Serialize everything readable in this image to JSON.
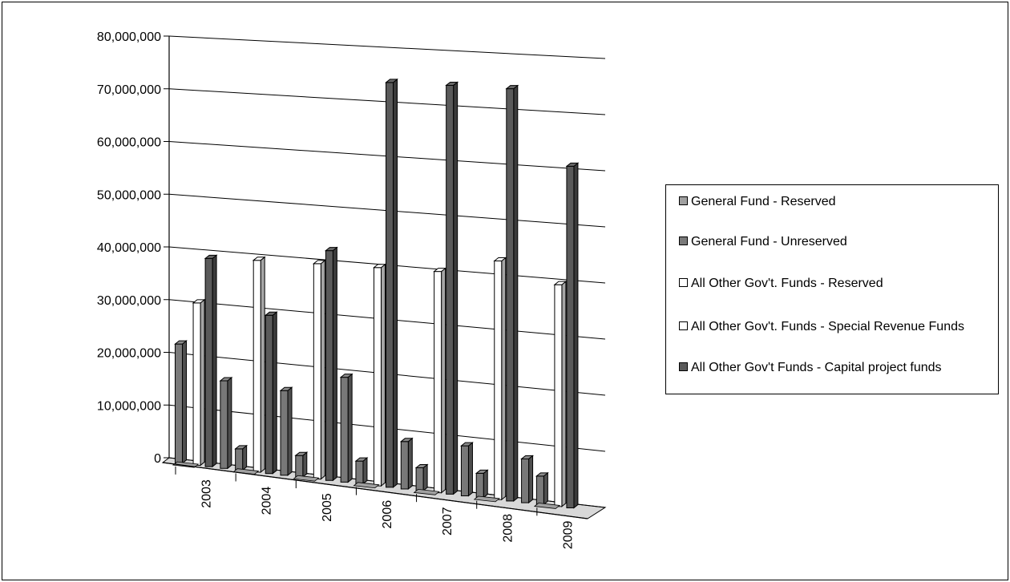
{
  "chart_data": {
    "type": "bar",
    "style": "3d-clustered-column",
    "categories": [
      "2003",
      "2004",
      "2005",
      "2006",
      "2007",
      "2008",
      "2009"
    ],
    "series": [
      {
        "name": "General Fund - Reserved",
        "color": "#a0a0a0",
        "values": [
          0,
          0,
          0,
          0,
          0,
          0,
          0
        ]
      },
      {
        "name": "General Fund - Unreserved",
        "color": "#7a7a7a",
        "values": [
          22600000,
          4000000,
          4000000,
          4200000,
          4200000,
          4400000,
          5100000
        ]
      },
      {
        "name": "All Other Gov't. Funds - Reserved",
        "color": "#ffffff",
        "values": [
          30700000,
          39700000,
          40000000,
          40200000,
          40400000,
          43200000,
          39800000
        ]
      },
      {
        "name": "All Other Gov't. Funds - Special Revenue Funds",
        "color": "#ffffff",
        "values": [
          0,
          0,
          0,
          0,
          0,
          0,
          0
        ]
      },
      {
        "name": "All Other Gov't Funds - Capital project funds",
        "color": "#5a5a5a",
        "values": [
          39300000,
          29600000,
          42600000,
          74400000,
          74500000,
          74500000,
          61200000
        ]
      }
    ],
    "extra_series": [
      {
        "color": "#787878",
        "values": [
          16500000,
          15800000,
          19400000,
          8700000,
          9100000,
          7900000,
          null
        ]
      }
    ],
    "y_ticks": [
      "0",
      "10,000,000",
      "20,000,000",
      "30,000,000",
      "40,000,000",
      "50,000,000",
      "60,000,000",
      "70,000,000",
      "80,000,000"
    ],
    "ylim": [
      0,
      80000000
    ],
    "grid": true,
    "legend_position": "right",
    "title": "",
    "xlabel": "",
    "ylabel": ""
  }
}
